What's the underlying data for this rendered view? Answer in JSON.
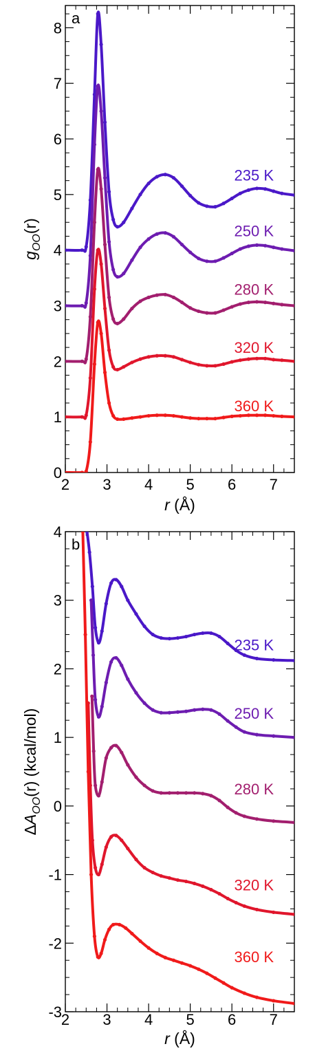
{
  "chart_data": [
    {
      "type": "line",
      "panel_label": "a",
      "xlabel": {
        "var": "r",
        "unit": " (Å)"
      },
      "ylabel": {
        "main": "g",
        "sub": "OO",
        "tail": "(r)"
      },
      "xlim": [
        2,
        7.5
      ],
      "ylim": [
        0,
        8.4
      ],
      "xticks": [
        "2",
        "3",
        "4",
        "5",
        "6",
        "7"
      ],
      "yticks": [
        "0",
        "1",
        "2",
        "3",
        "4",
        "5",
        "6",
        "7",
        "8"
      ],
      "series": [
        {
          "name": "235 K",
          "color": "#4a18c8",
          "offset": 4,
          "x": [
            2.0,
            2.4,
            2.5,
            2.6,
            2.7,
            2.78,
            2.86,
            2.95,
            3.05,
            3.15,
            3.25,
            3.4,
            3.6,
            3.8,
            4.0,
            4.2,
            4.4,
            4.6,
            4.8,
            5.0,
            5.2,
            5.4,
            5.6,
            5.8,
            6.0,
            6.2,
            6.4,
            6.6,
            6.8,
            7.0,
            7.2,
            7.5
          ],
          "y": [
            4.0,
            4.0,
            4.06,
            4.9,
            6.8,
            8.25,
            7.7,
            6.3,
            5.05,
            4.55,
            4.42,
            4.5,
            4.75,
            5.0,
            5.2,
            5.32,
            5.36,
            5.3,
            5.15,
            4.98,
            4.85,
            4.79,
            4.78,
            4.84,
            4.93,
            5.02,
            5.08,
            5.11,
            5.1,
            5.06,
            5.02,
            4.99
          ]
        },
        {
          "name": "250 K",
          "color": "#6d1cb0",
          "offset": 3,
          "x": [
            2.0,
            2.4,
            2.5,
            2.6,
            2.7,
            2.78,
            2.86,
            2.95,
            3.05,
            3.15,
            3.25,
            3.4,
            3.6,
            3.8,
            4.0,
            4.2,
            4.4,
            4.6,
            4.8,
            5.0,
            5.2,
            5.4,
            5.6,
            5.8,
            6.0,
            6.2,
            6.4,
            6.6,
            6.8,
            7.0,
            7.2,
            7.5
          ],
          "y": [
            3.0,
            3.0,
            3.05,
            3.9,
            5.9,
            6.95,
            6.5,
            5.3,
            4.15,
            3.65,
            3.52,
            3.58,
            3.82,
            4.05,
            4.2,
            4.29,
            4.31,
            4.24,
            4.1,
            3.96,
            3.85,
            3.8,
            3.8,
            3.86,
            3.94,
            4.02,
            4.07,
            4.09,
            4.08,
            4.05,
            4.02,
            3.99
          ]
        },
        {
          "name": "280 K",
          "color": "#a21e6e",
          "offset": 2,
          "x": [
            2.0,
            2.4,
            2.5,
            2.6,
            2.7,
            2.78,
            2.86,
            2.95,
            3.05,
            3.15,
            3.25,
            3.4,
            3.6,
            3.8,
            4.0,
            4.2,
            4.4,
            4.6,
            4.8,
            5.0,
            5.2,
            5.4,
            5.6,
            5.8,
            6.0,
            6.2,
            6.4,
            6.6,
            6.8,
            7.0,
            7.2,
            7.5
          ],
          "y": [
            2.0,
            2.0,
            2.04,
            2.8,
            4.5,
            5.45,
            5.1,
            4.1,
            3.15,
            2.76,
            2.68,
            2.76,
            2.95,
            3.08,
            3.15,
            3.19,
            3.2,
            3.15,
            3.06,
            2.96,
            2.9,
            2.87,
            2.87,
            2.92,
            2.98,
            3.03,
            3.06,
            3.07,
            3.06,
            3.04,
            3.02,
            3.0
          ]
        },
        {
          "name": "320 K",
          "color": "#e0162c",
          "offset": 1,
          "x": [
            2.0,
            2.4,
            2.5,
            2.6,
            2.7,
            2.78,
            2.86,
            2.95,
            3.05,
            3.15,
            3.25,
            3.4,
            3.6,
            3.8,
            4.0,
            4.2,
            4.4,
            4.6,
            4.8,
            5.0,
            5.2,
            5.4,
            5.6,
            5.8,
            6.0,
            6.2,
            6.4,
            6.6,
            6.8,
            7.0,
            7.2,
            7.5
          ],
          "y": [
            1.0,
            1.0,
            1.03,
            1.7,
            3.3,
            4.0,
            3.75,
            2.95,
            2.2,
            1.9,
            1.85,
            1.9,
            1.98,
            2.04,
            2.08,
            2.1,
            2.1,
            2.08,
            2.03,
            1.98,
            1.94,
            1.92,
            1.92,
            1.95,
            1.99,
            2.02,
            2.04,
            2.05,
            2.05,
            2.03,
            2.02,
            2.0
          ]
        },
        {
          "name": "360 K",
          "color": "#f01a1a",
          "offset": 0,
          "x": [
            2.0,
            2.4,
            2.5,
            2.6,
            2.7,
            2.78,
            2.86,
            2.95,
            3.05,
            3.15,
            3.25,
            3.4,
            3.6,
            3.8,
            4.0,
            4.2,
            4.4,
            4.6,
            4.8,
            5.0,
            5.2,
            5.4,
            5.6,
            5.8,
            6.0,
            6.2,
            6.4,
            6.6,
            6.8,
            7.0,
            7.2,
            7.5
          ],
          "y": [
            0.0,
            0.0,
            0.02,
            0.55,
            1.95,
            2.7,
            2.5,
            1.8,
            1.25,
            1.02,
            0.96,
            0.96,
            0.98,
            1.0,
            1.02,
            1.03,
            1.03,
            1.02,
            1.0,
            0.98,
            0.97,
            0.97,
            0.97,
            0.99,
            1.01,
            1.02,
            1.03,
            1.03,
            1.03,
            1.02,
            1.01,
            1.0
          ]
        }
      ]
    },
    {
      "type": "line",
      "panel_label": "b",
      "xlabel": {
        "var": "r",
        "unit": " (Å)"
      },
      "ylabel": {
        "prefix": "Δ",
        "main": "A",
        "sub": "OO",
        "tail": "(r)",
        "unit": " (kcal/mol)"
      },
      "xlim": [
        2,
        7.5
      ],
      "ylim": [
        -3,
        4
      ],
      "xticks": [
        "2",
        "3",
        "4",
        "5",
        "6",
        "7"
      ],
      "yticks": [
        "-3",
        "-2",
        "-1",
        "0",
        "1",
        "2",
        "3",
        "4"
      ],
      "series": [
        {
          "name": "235 K",
          "color": "#4a18c8",
          "x": [
            2.52,
            2.58,
            2.65,
            2.72,
            2.8,
            2.88,
            2.98,
            3.1,
            3.22,
            3.35,
            3.5,
            3.7,
            3.9,
            4.1,
            4.3,
            4.5,
            4.7,
            4.9,
            5.1,
            5.3,
            5.5,
            5.7,
            5.9,
            6.1,
            6.3,
            6.6,
            7.0,
            7.5
          ],
          "y": [
            4.0,
            3.7,
            3.2,
            2.6,
            2.38,
            2.55,
            2.95,
            3.25,
            3.3,
            3.2,
            3.0,
            2.8,
            2.62,
            2.5,
            2.45,
            2.44,
            2.45,
            2.47,
            2.5,
            2.52,
            2.52,
            2.47,
            2.37,
            2.27,
            2.2,
            2.15,
            2.13,
            2.12
          ]
        },
        {
          "name": "250 K",
          "color": "#6d1cb0",
          "x": [
            2.62,
            2.67,
            2.72,
            2.8,
            2.88,
            2.98,
            3.1,
            3.22,
            3.35,
            3.5,
            3.7,
            3.9,
            4.1,
            4.3,
            4.5,
            4.7,
            4.9,
            5.1,
            5.3,
            5.5,
            5.7,
            5.9,
            6.1,
            6.3,
            6.6,
            7.0,
            7.5
          ],
          "y": [
            3.0,
            2.2,
            1.55,
            1.3,
            1.45,
            1.8,
            2.1,
            2.16,
            2.05,
            1.85,
            1.65,
            1.5,
            1.4,
            1.36,
            1.36,
            1.37,
            1.38,
            1.4,
            1.41,
            1.4,
            1.34,
            1.24,
            1.15,
            1.08,
            1.04,
            1.02,
            1.0
          ]
        },
        {
          "name": "280 K",
          "color": "#a21e6e",
          "x": [
            2.64,
            2.68,
            2.72,
            2.8,
            2.88,
            2.98,
            3.1,
            3.22,
            3.35,
            3.5,
            3.7,
            3.9,
            4.1,
            4.3,
            4.5,
            4.7,
            4.9,
            5.1,
            5.3,
            5.5,
            5.7,
            5.9,
            6.1,
            6.3,
            6.6,
            7.0,
            7.5
          ],
          "y": [
            1.6,
            0.8,
            0.3,
            0.15,
            0.35,
            0.7,
            0.85,
            0.88,
            0.78,
            0.6,
            0.42,
            0.3,
            0.22,
            0.19,
            0.19,
            0.19,
            0.19,
            0.19,
            0.18,
            0.15,
            0.08,
            -0.02,
            -0.1,
            -0.15,
            -0.19,
            -0.22,
            -0.24
          ]
        },
        {
          "name": "320 K",
          "color": "#e0162c",
          "x": [
            2.55,
            2.6,
            2.65,
            2.72,
            2.8,
            2.88,
            2.98,
            3.1,
            3.22,
            3.35,
            3.5,
            3.7,
            3.9,
            4.1,
            4.3,
            4.5,
            4.7,
            4.9,
            5.1,
            5.3,
            5.5,
            5.7,
            5.9,
            6.1,
            6.3,
            6.6,
            7.0,
            7.5
          ],
          "y": [
            1.5,
            0.3,
            -0.5,
            -0.9,
            -1.0,
            -0.85,
            -0.6,
            -0.45,
            -0.43,
            -0.5,
            -0.62,
            -0.78,
            -0.9,
            -0.97,
            -1.02,
            -1.05,
            -1.08,
            -1.1,
            -1.13,
            -1.17,
            -1.22,
            -1.28,
            -1.35,
            -1.41,
            -1.46,
            -1.51,
            -1.55,
            -1.58
          ]
        },
        {
          "name": "360 K",
          "color": "#f01a1a",
          "x": [
            2.42,
            2.48,
            2.55,
            2.62,
            2.7,
            2.78,
            2.86,
            2.95,
            3.05,
            3.15,
            3.3,
            3.45,
            3.6,
            3.8,
            4.0,
            4.2,
            4.4,
            4.6,
            4.8,
            5.0,
            5.2,
            5.4,
            5.6,
            5.8,
            6.0,
            6.3,
            6.6,
            7.0,
            7.5
          ],
          "y": [
            4.0,
            2.5,
            0.5,
            -1.0,
            -1.9,
            -2.2,
            -2.15,
            -1.95,
            -1.8,
            -1.73,
            -1.73,
            -1.78,
            -1.86,
            -1.97,
            -2.07,
            -2.15,
            -2.21,
            -2.25,
            -2.29,
            -2.33,
            -2.38,
            -2.44,
            -2.51,
            -2.58,
            -2.65,
            -2.73,
            -2.79,
            -2.84,
            -2.88
          ]
        }
      ]
    }
  ]
}
